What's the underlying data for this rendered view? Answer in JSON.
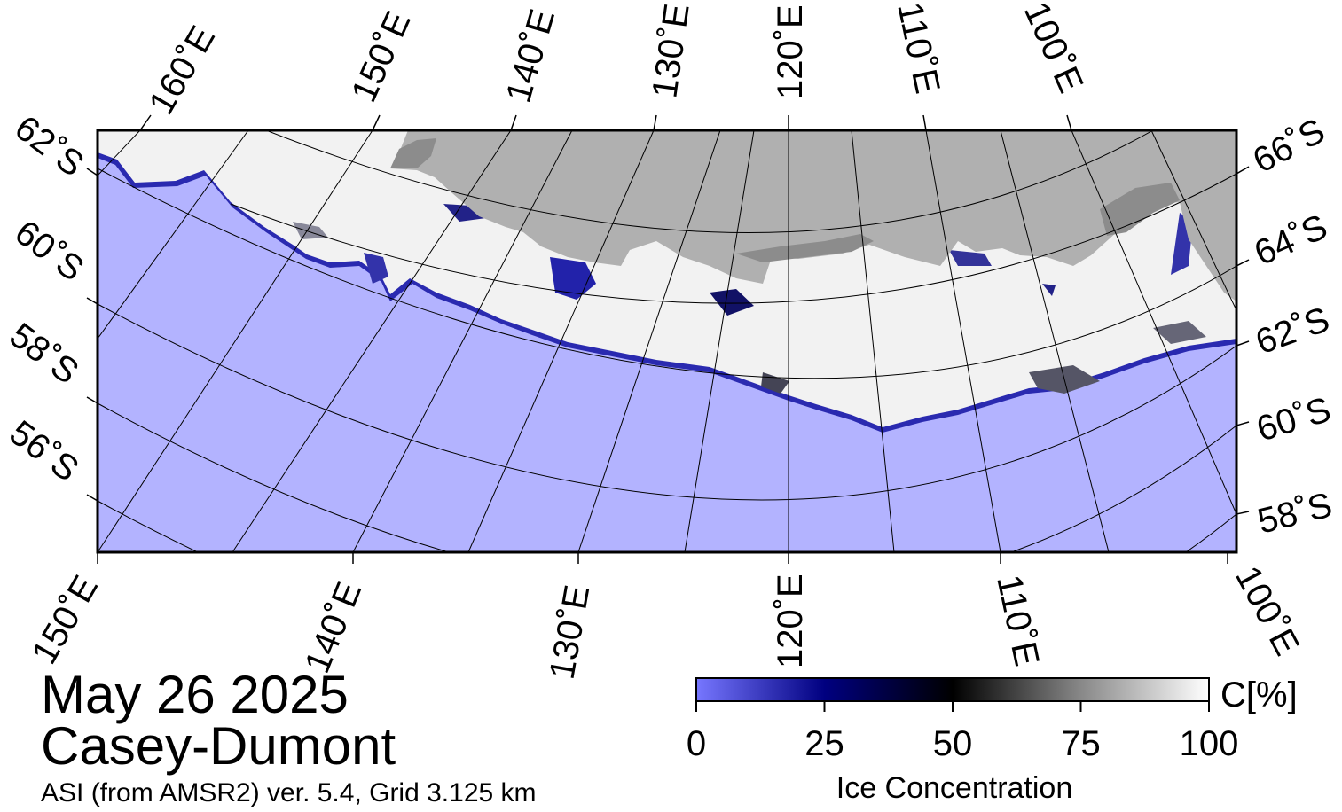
{
  "map": {
    "title_date": "May 26 2025",
    "title_region": "Casey-Dumont",
    "source_note": "ASI (from AMSR2) ver. 5.4,  Grid 3.125 km",
    "top_lon_labels": [
      "160˚E",
      "150˚E",
      "140˚E",
      "130˚E",
      "120˚E",
      "110˚E",
      "100˚E"
    ],
    "bottom_lon_labels": [
      "150˚E",
      "140˚E",
      "130˚E",
      "120˚E",
      "110˚E",
      "100˚E"
    ],
    "left_lat_labels": [
      "62˚S",
      "60˚S",
      "58˚S",
      "56˚S"
    ],
    "right_lat_labels": [
      "66˚S",
      "64˚S",
      "62˚S",
      "60˚S",
      "58˚S"
    ],
    "colors": {
      "ocean": "#b3b3ff",
      "land": "#b0b0b0",
      "land_ice_shelf": "#8c8c8c",
      "ice": "#ffffff",
      "frame": "#000000",
      "gridline": "#000000"
    }
  },
  "colorbar": {
    "label": "Ice Concentration",
    "unit": "C[%]",
    "ticks": [
      "0",
      "25",
      "50",
      "75",
      "100"
    ],
    "tick_values": [
      0,
      25,
      50,
      75,
      100
    ],
    "gradient_stops": [
      {
        "value": 0,
        "color": "#7777ff"
      },
      {
        "value": 25,
        "color": "#000080"
      },
      {
        "value": 50,
        "color": "#000000"
      },
      {
        "value": 75,
        "color": "#888888"
      },
      {
        "value": 100,
        "color": "#ffffff"
      }
    ]
  }
}
